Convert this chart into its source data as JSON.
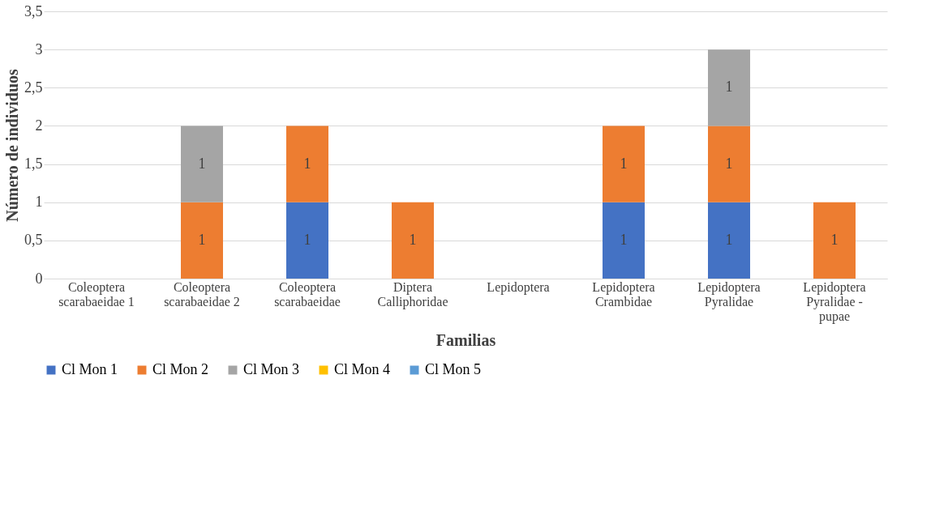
{
  "chart_data": {
    "type": "bar",
    "stacked": true,
    "xlabel": "Familias",
    "ylabel": "Número de individuos",
    "categories": [
      "Coleoptera scarabaeidae 1",
      "Coleoptera scarabaeidae 2",
      "Coleoptera scarabaeidae",
      "Diptera Calliphoridae",
      "Lepidoptera",
      "Lepidoptera Crambidae",
      "Lepidoptera Pyralidae",
      "Lepidoptera Pyralidae - pupae"
    ],
    "series": [
      {
        "name": "Cl Mon 1",
        "color": "#4472c4",
        "values": [
          null,
          null,
          1,
          null,
          null,
          1,
          1,
          null
        ]
      },
      {
        "name": "Cl Mon 2",
        "color": "#ed7d31",
        "values": [
          null,
          1,
          1,
          1,
          null,
          1,
          1,
          1
        ]
      },
      {
        "name": "Cl Mon 3",
        "color": "#a5a5a5",
        "values": [
          null,
          1,
          null,
          null,
          null,
          null,
          1,
          null
        ]
      },
      {
        "name": "Cl Mon 4",
        "color": "#ffc000",
        "values": [
          null,
          null,
          null,
          null,
          null,
          null,
          null,
          null
        ]
      },
      {
        "name": "Cl Mon 5",
        "color": "#5b9bd5",
        "values": [
          null,
          null,
          null,
          null,
          null,
          null,
          null,
          null
        ]
      }
    ],
    "ylim": [
      0,
      3.5
    ],
    "yticks": [
      0,
      {
        "value": 0.5,
        "label": "0,5"
      },
      1,
      {
        "value": 1.5,
        "label": "1,5"
      },
      2,
      {
        "value": 2.5,
        "label": "2,5"
      },
      3,
      {
        "value": 3.5,
        "label": "3,5"
      }
    ],
    "grid": "y",
    "legend": "bottom",
    "data_labels": true
  }
}
